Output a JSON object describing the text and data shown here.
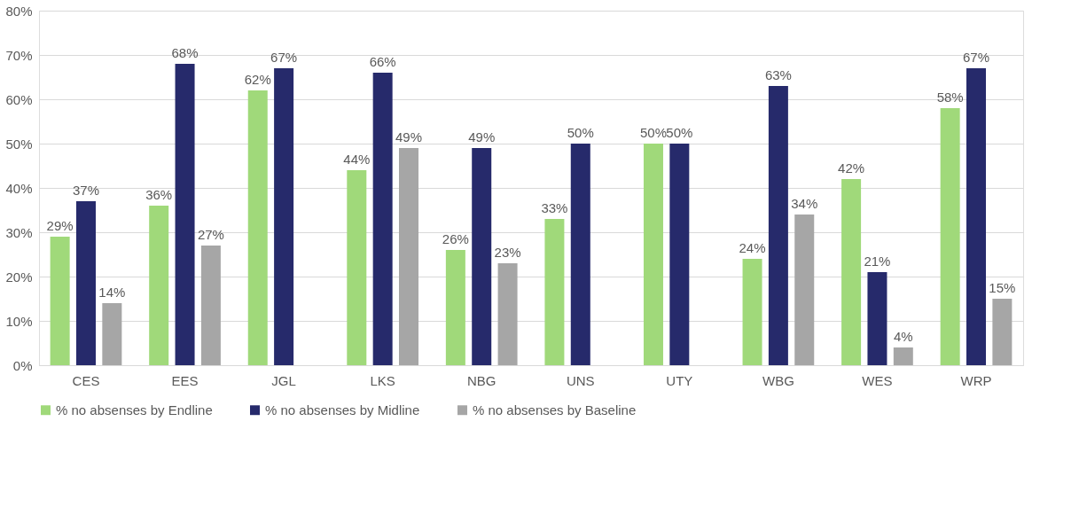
{
  "chart_data": {
    "type": "bar",
    "categories": [
      "CES",
      "EES",
      "JGL",
      "LKS",
      "NBG",
      "UNS",
      "UTY",
      "WBG",
      "WES",
      "WRP"
    ],
    "series": [
      {
        "name": "% no absenses by Endline",
        "color": "#a0d97a",
        "values": [
          29,
          36,
          62,
          44,
          26,
          33,
          50,
          24,
          42,
          58
        ],
        "value_labels": [
          "29%",
          "36%",
          "62%",
          "44%",
          "26%",
          "33%",
          "50%",
          "24%",
          "42%",
          "58%"
        ]
      },
      {
        "name": "% no absenses by Midline",
        "color": "#262a6b",
        "values": [
          37,
          68,
          67,
          66,
          49,
          50,
          50,
          63,
          21,
          67
        ],
        "value_labels": [
          "37%",
          "68%",
          "67%",
          "66%",
          "49%",
          "50%",
          "50%",
          "63%",
          "21%",
          "67%"
        ]
      },
      {
        "name": "% no absenses by Baseline",
        "color": "#a6a6a6",
        "values": [
          14,
          27,
          null,
          49,
          23,
          null,
          null,
          34,
          4,
          15
        ],
        "value_labels": [
          "14%",
          "27%",
          null,
          "49%",
          "23%",
          null,
          null,
          "34%",
          "4%",
          "15%"
        ]
      }
    ],
    "ylim": [
      0,
      80
    ],
    "yticks": [
      {
        "value": 0,
        "label": "0%"
      },
      {
        "value": 10,
        "label": "10%"
      },
      {
        "value": 20,
        "label": "20%"
      },
      {
        "value": 30,
        "label": "30%"
      },
      {
        "value": 40,
        "label": "40%"
      },
      {
        "value": 50,
        "label": "50%"
      },
      {
        "value": 60,
        "label": "60%"
      },
      {
        "value": 70,
        "label": "70%"
      },
      {
        "value": 80,
        "label": "80%"
      }
    ],
    "grid": "y",
    "legend": "bottom"
  }
}
